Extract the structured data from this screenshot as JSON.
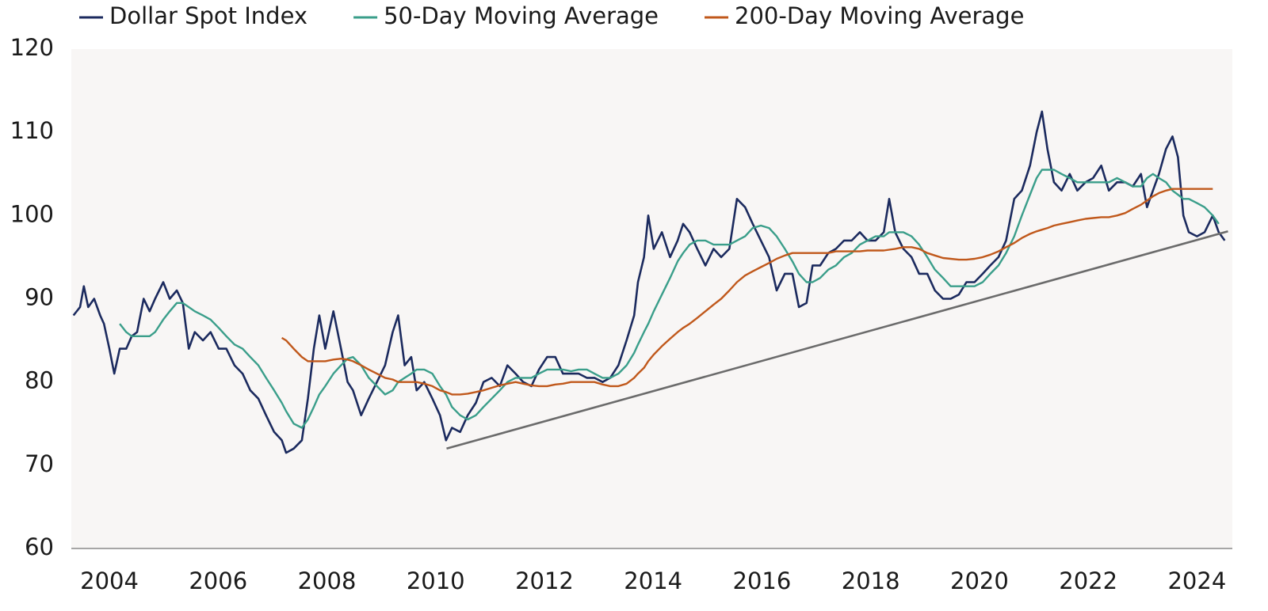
{
  "chart_data": {
    "type": "line",
    "x": [
      2003.34,
      2003.46,
      2003.53,
      2003.61,
      2003.72,
      2003.83,
      2003.9,
      2004.0,
      2004.09,
      2004.19,
      2004.31,
      2004.41,
      2004.51,
      2004.63,
      2004.74,
      2004.84,
      2004.99,
      2005.11,
      2005.24,
      2005.35,
      2005.46,
      2005.57,
      2005.72,
      2005.86,
      2006.01,
      2006.15,
      2006.3,
      2006.45,
      2006.59,
      2006.74,
      2006.88,
      2007.03,
      2007.17,
      2007.25,
      2007.39,
      2007.54,
      2007.65,
      2007.76,
      2007.86,
      2007.97,
      2008.12,
      2008.26,
      2008.38,
      2008.48,
      2008.63,
      2008.77,
      2008.92,
      2009.07,
      2009.21,
      2009.31,
      2009.43,
      2009.55,
      2009.65,
      2009.79,
      2009.94,
      2010.08,
      2010.19,
      2010.3,
      2010.45,
      2010.59,
      2010.74,
      2010.88,
      2011.03,
      2011.18,
      2011.32,
      2011.47,
      2011.61,
      2011.76,
      2011.9,
      2012.05,
      2012.2,
      2012.34,
      2012.49,
      2012.63,
      2012.78,
      2012.92,
      2013.07,
      2013.21,
      2013.36,
      2013.51,
      2013.65,
      2013.72,
      2013.83,
      2013.91,
      2014.01,
      2014.16,
      2014.31,
      2014.45,
      2014.55,
      2014.67,
      2014.81,
      2014.96,
      2015.11,
      2015.25,
      2015.4,
      2015.54,
      2015.69,
      2015.83,
      2015.98,
      2016.13,
      2016.27,
      2016.42,
      2016.56,
      2016.68,
      2016.82,
      2016.93,
      2017.07,
      2017.22,
      2017.36,
      2017.51,
      2017.65,
      2017.8,
      2017.94,
      2018.09,
      2018.24,
      2018.34,
      2018.45,
      2018.6,
      2018.75,
      2018.89,
      2019.04,
      2019.18,
      2019.33,
      2019.47,
      2019.62,
      2019.76,
      2019.91,
      2020.06,
      2020.2,
      2020.35,
      2020.49,
      2020.64,
      2020.78,
      2020.93,
      2021.05,
      2021.15,
      2021.25,
      2021.37,
      2021.51,
      2021.66,
      2021.8,
      2021.95,
      2022.09,
      2022.24,
      2022.38,
      2022.53,
      2022.68,
      2022.82,
      2022.97,
      2023.08,
      2023.19,
      2023.3,
      2023.43,
      2023.55,
      2023.65,
      2023.75,
      2023.85,
      2024.0,
      2024.14,
      2024.29,
      2024.4,
      2024.51
    ],
    "series": [
      {
        "name": "Dollar Spot Index",
        "color": "#1b2a5e",
        "values": [
          88,
          89,
          91.5,
          89,
          90,
          88,
          87,
          84,
          81,
          84,
          84,
          85.5,
          86,
          90,
          88.5,
          90,
          92,
          90,
          91,
          89.5,
          84,
          86,
          85,
          86,
          84,
          84,
          82,
          81,
          79,
          78,
          76,
          74,
          73,
          71.5,
          72,
          73,
          78,
          84,
          88,
          84,
          88.5,
          84,
          80,
          79,
          76,
          78,
          80,
          82,
          86,
          88,
          82,
          83,
          79,
          80,
          78,
          76,
          73,
          74.5,
          74,
          76,
          77.5,
          80,
          80.5,
          79.5,
          82,
          81,
          80,
          79.5,
          81.5,
          83,
          83,
          81,
          81,
          81,
          80.5,
          80.5,
          80,
          80.5,
          82,
          85,
          88,
          92,
          95,
          100,
          96,
          98,
          95,
          97,
          99,
          98,
          96,
          94,
          96,
          95,
          96,
          102,
          101,
          99,
          97,
          95,
          91,
          93,
          93,
          89,
          89.5,
          94,
          94,
          95.5,
          96,
          97,
          97,
          98,
          97,
          97,
          98,
          102,
          98,
          96,
          95,
          93,
          93,
          91,
          90,
          90,
          90.5,
          92,
          92,
          93,
          94,
          95,
          97,
          102,
          103,
          106,
          110,
          112.5,
          108,
          104,
          103,
          105,
          103,
          104,
          104.5,
          106,
          103,
          104,
          104,
          103.5,
          105,
          101,
          103,
          105,
          108,
          109.5,
          107,
          100,
          98,
          97.5,
          98,
          100,
          98,
          97
        ]
      },
      {
        "name": "50-Day Moving Average",
        "color": "#3a9e8a",
        "values": [
          null,
          null,
          null,
          null,
          null,
          null,
          null,
          null,
          null,
          87,
          86,
          85.5,
          85.5,
          85.5,
          85.5,
          86,
          87.5,
          88.5,
          89.5,
          89.5,
          89,
          88.5,
          88,
          87.5,
          86.5,
          85.5,
          84.5,
          84,
          83,
          82,
          80.5,
          79,
          77.5,
          76.5,
          75,
          74.5,
          75.5,
          77,
          78.5,
          79.5,
          81,
          82,
          82.8,
          83,
          82,
          80.5,
          79.5,
          78.5,
          79,
          80,
          80.5,
          81,
          81.5,
          81.5,
          81,
          79.5,
          78.5,
          77,
          76,
          75.5,
          76,
          77,
          78,
          79,
          80,
          80.5,
          80.5,
          80.5,
          81,
          81.5,
          81.5,
          81.5,
          81.3,
          81.5,
          81.5,
          81,
          80.5,
          80.5,
          81,
          82,
          83.5,
          84.5,
          86,
          87,
          88.5,
          90.5,
          92.5,
          94.5,
          95.5,
          96.5,
          97,
          97,
          96.5,
          96.5,
          96.5,
          97,
          97.5,
          98.5,
          98.8,
          98.5,
          97.5,
          96,
          94.5,
          93,
          92,
          92,
          92.5,
          93.5,
          94,
          95,
          95.5,
          96.5,
          97,
          97.5,
          97.5,
          98,
          98,
          98,
          97.5,
          96.5,
          95,
          93.5,
          92.5,
          91.5,
          91.5,
          91.5,
          91.5,
          92,
          93,
          94,
          95.5,
          97.5,
          100,
          102.5,
          104.5,
          105.5,
          105.5,
          105.5,
          105,
          104.5,
          104,
          104,
          104,
          104,
          104,
          104.5,
          104,
          103.5,
          103.5,
          104.5,
          105,
          104.5,
          104,
          103,
          102.5,
          102,
          102,
          101.5,
          101,
          100,
          99,
          null
        ]
      },
      {
        "name": "200-Day Moving Average",
        "color": "#c0581b",
        "values": [
          null,
          null,
          null,
          null,
          null,
          null,
          null,
          null,
          null,
          null,
          null,
          null,
          null,
          null,
          null,
          null,
          null,
          null,
          null,
          null,
          null,
          null,
          null,
          null,
          null,
          null,
          null,
          null,
          null,
          null,
          null,
          null,
          85.3,
          85,
          84,
          83,
          82.5,
          82.5,
          82.5,
          82.5,
          82.7,
          82.8,
          82.7,
          82.5,
          82,
          81.5,
          81,
          80.5,
          80.3,
          80,
          80,
          80,
          80,
          79.8,
          79.5,
          79,
          78.8,
          78.5,
          78.5,
          78.6,
          78.8,
          79,
          79.3,
          79.6,
          79.8,
          80,
          79.8,
          79.6,
          79.5,
          79.5,
          79.7,
          79.8,
          80,
          80,
          80,
          80,
          79.7,
          79.5,
          79.5,
          79.8,
          80.5,
          81,
          81.7,
          82.5,
          83.3,
          84.3,
          85.2,
          86,
          86.5,
          87,
          87.7,
          88.5,
          89.3,
          90,
          91,
          92,
          92.8,
          93.3,
          93.8,
          94.3,
          94.8,
          95.2,
          95.5,
          95.5,
          95.5,
          95.5,
          95.5,
          95.5,
          95.7,
          95.7,
          95.7,
          95.7,
          95.8,
          95.8,
          95.8,
          95.9,
          96,
          96.2,
          96.2,
          96,
          95.5,
          95.2,
          94.9,
          94.8,
          94.7,
          94.7,
          94.8,
          95,
          95.3,
          95.7,
          96.2,
          96.7,
          97.3,
          97.8,
          98.1,
          98.3,
          98.5,
          98.8,
          99,
          99.2,
          99.4,
          99.6,
          99.7,
          99.8,
          99.8,
          100,
          100.3,
          100.8,
          101.3,
          101.8,
          102.3,
          102.7,
          103,
          103.2,
          103.2,
          103.2,
          103.2,
          103.2,
          103.2,
          103.2,
          null,
          null
        ]
      }
    ],
    "trendline": {
      "x": [
        2010.2,
        2024.57
      ],
      "values": [
        72,
        98.1
      ],
      "color": "#6b6b6b"
    },
    "xlim": [
      2003.3,
      2024.65
    ],
    "xticks": [
      2004,
      2006,
      2008,
      2010,
      2012,
      2014,
      2016,
      2018,
      2020,
      2022,
      2024
    ],
    "ylim": [
      60,
      120
    ],
    "yticks": [
      60,
      70,
      80,
      90,
      100,
      110,
      120
    ],
    "grid": false
  }
}
